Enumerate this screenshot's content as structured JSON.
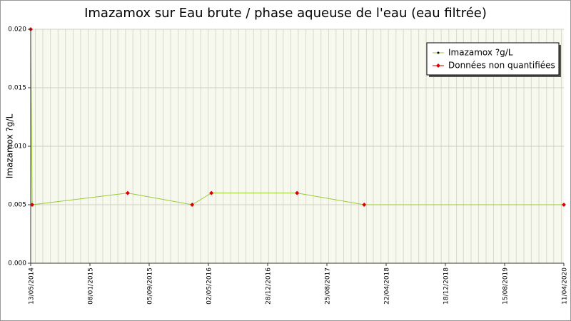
{
  "chart_data": {
    "type": "line",
    "title": "Imazamox sur Eau brute / phase aqueuse de l'eau (eau filtrée)",
    "y_label": "Imazamox ?g/L",
    "x": [
      "13/05/2014",
      "19/05/2014",
      "10/06/2015",
      "26/02/2016",
      "14/05/2016",
      "26/04/2017",
      "23/01/2018",
      "11/04/2020"
    ],
    "series": [
      {
        "name": "Imazamox ?g/L",
        "color": "#99cc33",
        "values": [
          0.02,
          0.005,
          0.006,
          0.005,
          0.006,
          0.006,
          0.005,
          0.005
        ]
      },
      {
        "name": "Données non quantifiées",
        "color": "#dd0000",
        "values": [
          0.02,
          0.005,
          0.006,
          0.005,
          0.006,
          0.006,
          0.005,
          0.005
        ]
      }
    ],
    "xlim": [
      "13/05/2014",
      "11/04/2020"
    ],
    "xticks": [
      "13/05/2014",
      "08/01/2015",
      "05/09/2015",
      "02/05/2016",
      "28/12/2016",
      "25/08/2017",
      "22/04/2018",
      "18/12/2018",
      "15/08/2019",
      "11/04/2020"
    ],
    "ylim": [
      0,
      0.02
    ],
    "yticks": [
      {
        "value": 0,
        "label": "0.000"
      },
      {
        "value": 0.005,
        "label": "0.005"
      },
      {
        "value": 0.01,
        "label": "0.010"
      },
      {
        "value": 0.015,
        "label": "0.015"
      },
      {
        "value": 0.02,
        "label": "0.020"
      }
    ],
    "grid": true,
    "legend": "top-right"
  }
}
